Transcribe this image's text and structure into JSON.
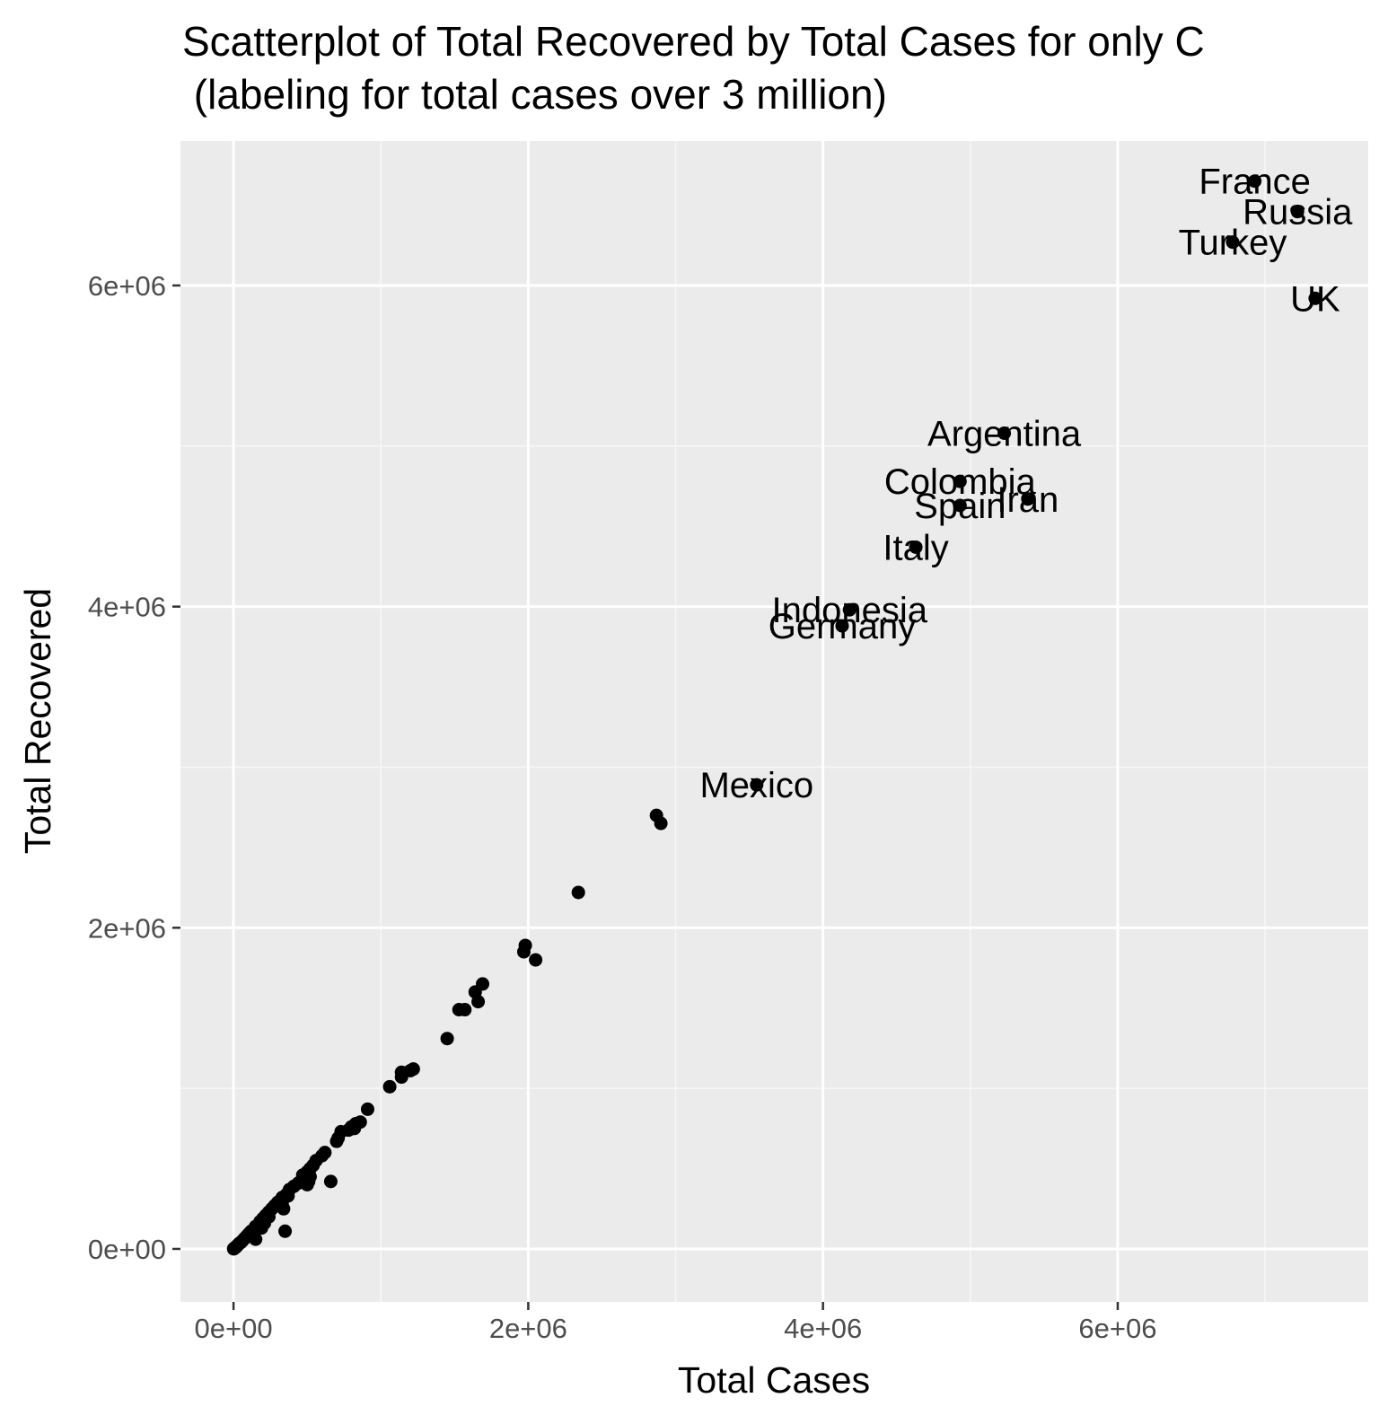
{
  "chart_data": {
    "type": "scatter",
    "title_lines": [
      "Scatterplot of Total Recovered by Total Cases for only C",
      " (labeling for total cases over 3 million)"
    ],
    "xlabel": "Total Cases",
    "ylabel": "Total Recovered",
    "xlim": [
      -360000,
      7700000
    ],
    "ylim": [
      -330000,
      6900000
    ],
    "x_ticks": [
      {
        "value": 0,
        "label": "0e+00"
      },
      {
        "value": 2000000,
        "label": "2e+06"
      },
      {
        "value": 4000000,
        "label": "4e+06"
      },
      {
        "value": 6000000,
        "label": "6e+06"
      }
    ],
    "y_ticks": [
      {
        "value": 0,
        "label": "0e+00"
      },
      {
        "value": 2000000,
        "label": "2e+06"
      },
      {
        "value": 4000000,
        "label": "4e+06"
      },
      {
        "value": 6000000,
        "label": "6e+06"
      }
    ],
    "grid": true,
    "legend": "none",
    "colors": {
      "panel_background": "#ebebeb",
      "grid_major": "#ffffff",
      "grid_minor": "#f7f7f7",
      "point": "#000000",
      "tick": "#333333"
    },
    "labeled_points": [
      {
        "label": "France",
        "x": 6930000,
        "y": 6650000
      },
      {
        "label": "Russia",
        "x": 7220000,
        "y": 6460000
      },
      {
        "label": "Turkey",
        "x": 6780000,
        "y": 6270000
      },
      {
        "label": "UK",
        "x": 7340000,
        "y": 5920000
      },
      {
        "label": "Argentina",
        "x": 5230000,
        "y": 5080000
      },
      {
        "label": "Colombia",
        "x": 4930000,
        "y": 4780000
      },
      {
        "label": "Iran",
        "x": 5390000,
        "y": 4670000
      },
      {
        "label": "Spain",
        "x": 4930000,
        "y": 4630000
      },
      {
        "label": "Italy",
        "x": 4630000,
        "y": 4370000
      },
      {
        "label": "Indonesia",
        "x": 4180000,
        "y": 3980000
      },
      {
        "label": "Germany",
        "x": 4130000,
        "y": 3880000
      },
      {
        "label": "Mexico",
        "x": 3550000,
        "y": 2890000
      }
    ],
    "points": [
      {
        "x": 2870000,
        "y": 2700000
      },
      {
        "x": 2900000,
        "y": 2650000
      },
      {
        "x": 2340000,
        "y": 2220000
      },
      {
        "x": 1980000,
        "y": 1890000
      },
      {
        "x": 1970000,
        "y": 1850000
      },
      {
        "x": 2050000,
        "y": 1800000
      },
      {
        "x": 1690000,
        "y": 1650000
      },
      {
        "x": 1640000,
        "y": 1600000
      },
      {
        "x": 1660000,
        "y": 1540000
      },
      {
        "x": 1530000,
        "y": 1490000
      },
      {
        "x": 1570000,
        "y": 1490000
      },
      {
        "x": 1450000,
        "y": 1310000
      },
      {
        "x": 1220000,
        "y": 1120000
      },
      {
        "x": 1200000,
        "y": 1110000
      },
      {
        "x": 1140000,
        "y": 1100000
      },
      {
        "x": 1140000,
        "y": 1070000
      },
      {
        "x": 1060000,
        "y": 1010000
      },
      {
        "x": 910000,
        "y": 870000
      },
      {
        "x": 860000,
        "y": 790000
      },
      {
        "x": 830000,
        "y": 780000
      },
      {
        "x": 800000,
        "y": 760000
      },
      {
        "x": 820000,
        "y": 750000
      },
      {
        "x": 780000,
        "y": 740000
      },
      {
        "x": 730000,
        "y": 730000
      },
      {
        "x": 710000,
        "y": 690000
      },
      {
        "x": 700000,
        "y": 670000
      },
      {
        "x": 620000,
        "y": 600000
      },
      {
        "x": 600000,
        "y": 580000
      },
      {
        "x": 560000,
        "y": 550000
      },
      {
        "x": 540000,
        "y": 520000
      },
      {
        "x": 520000,
        "y": 500000
      },
      {
        "x": 500000,
        "y": 480000
      },
      {
        "x": 470000,
        "y": 460000
      },
      {
        "x": 520000,
        "y": 450000
      },
      {
        "x": 460000,
        "y": 420000
      },
      {
        "x": 510000,
        "y": 420000
      },
      {
        "x": 660000,
        "y": 420000
      },
      {
        "x": 440000,
        "y": 410000
      },
      {
        "x": 500000,
        "y": 400000
      },
      {
        "x": 410000,
        "y": 390000
      },
      {
        "x": 380000,
        "y": 370000
      },
      {
        "x": 360000,
        "y": 340000
      },
      {
        "x": 370000,
        "y": 330000
      },
      {
        "x": 330000,
        "y": 320000
      },
      {
        "x": 300000,
        "y": 290000
      },
      {
        "x": 330000,
        "y": 280000
      },
      {
        "x": 280000,
        "y": 270000
      },
      {
        "x": 340000,
        "y": 250000
      },
      {
        "x": 260000,
        "y": 250000
      },
      {
        "x": 240000,
        "y": 230000
      },
      {
        "x": 220000,
        "y": 210000
      },
      {
        "x": 240000,
        "y": 200000
      },
      {
        "x": 200000,
        "y": 190000
      },
      {
        "x": 180000,
        "y": 170000
      },
      {
        "x": 210000,
        "y": 160000
      },
      {
        "x": 170000,
        "y": 150000
      },
      {
        "x": 150000,
        "y": 140000
      },
      {
        "x": 190000,
        "y": 130000
      },
      {
        "x": 140000,
        "y": 120000
      },
      {
        "x": 120000,
        "y": 110000
      },
      {
        "x": 350000,
        "y": 110000
      },
      {
        "x": 110000,
        "y": 100000
      },
      {
        "x": 100000,
        "y": 90000
      },
      {
        "x": 130000,
        "y": 80000
      },
      {
        "x": 90000,
        "y": 80000
      },
      {
        "x": 80000,
        "y": 70000
      },
      {
        "x": 70000,
        "y": 60000
      },
      {
        "x": 150000,
        "y": 60000
      },
      {
        "x": 60000,
        "y": 50000
      },
      {
        "x": 50000,
        "y": 40000
      },
      {
        "x": 40000,
        "y": 35000
      },
      {
        "x": 30000,
        "y": 25000
      },
      {
        "x": 25000,
        "y": 20000
      },
      {
        "x": 20000,
        "y": 15000
      },
      {
        "x": 15000,
        "y": 10000
      },
      {
        "x": 10000,
        "y": 8000
      },
      {
        "x": 5000,
        "y": 4000
      },
      {
        "x": 2000,
        "y": 1000
      },
      {
        "x": 1000,
        "y": 500
      }
    ]
  }
}
